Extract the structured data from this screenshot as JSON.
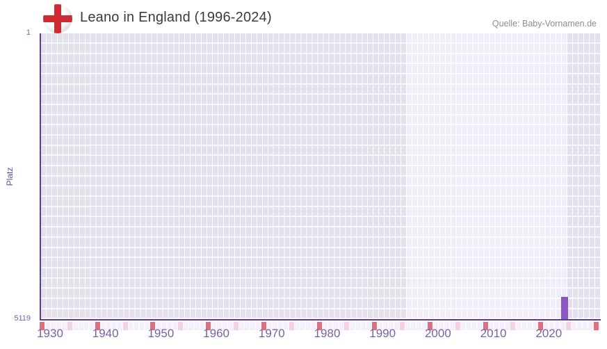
{
  "header": {
    "title": "Leano in England (1996-2024)",
    "source": "Quelle: Baby-Vornamen.de",
    "flag_icon": "england-flag",
    "flag_cross_color": "#cc2b31"
  },
  "chart_data": {
    "type": "bar",
    "title": "Leano in England (1996-2024)",
    "xlabel": "",
    "ylabel": "Platz",
    "y_axis": {
      "top_tick_label": "1",
      "bottom_tick_label": "5119",
      "min": 1,
      "max": 5119,
      "inverted": true
    },
    "x_axis": {
      "start_year": 1930,
      "end_year": 2030,
      "tick_labels": [
        "1930",
        "1940",
        "1950",
        "1960",
        "1970",
        "1980",
        "1990",
        "2000",
        "2010",
        "2020"
      ],
      "decade_marker_years": [
        1930,
        1940,
        1950,
        1960,
        1970,
        1980,
        1990,
        2000,
        2010,
        2020,
        2030
      ],
      "half_decade_marker_years": [
        1935,
        1945,
        1955,
        1965,
        1975,
        1985,
        1995,
        2005,
        2015,
        2025
      ]
    },
    "data_range": {
      "from": 1996,
      "to": 2024
    },
    "points": [
      {
        "year": 2024,
        "rank": 4720
      }
    ],
    "legend": null,
    "grid": "cell-matrix",
    "colors": {
      "bar": "#8a57c5",
      "axis_line": "#5c3a99",
      "cell_outside_range": "#e3e0ee",
      "cell_inside_range": "#f0edf8",
      "strip_cell_base": "#f3f0fa",
      "decade_marker": "#dd6f7e",
      "half_decade_marker": "#f3d3e1",
      "tick_text": "#7c5fa8"
    }
  }
}
